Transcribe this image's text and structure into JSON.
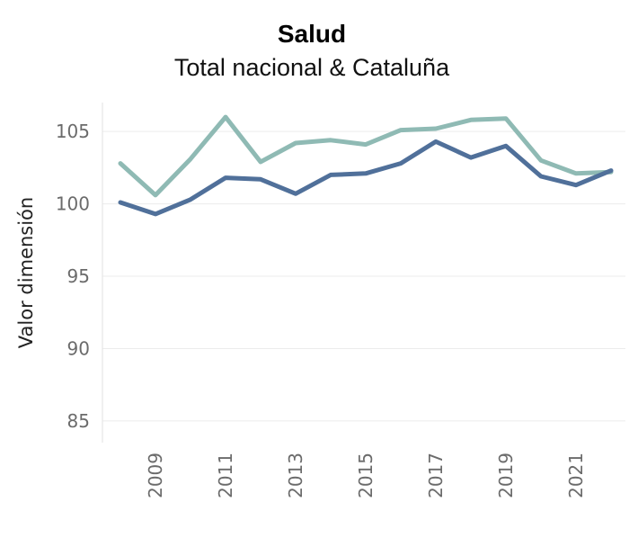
{
  "chart_data": {
    "type": "line",
    "title": "Salud",
    "subtitle": "Total nacional & Cataluña",
    "xlabel": "",
    "ylabel": "Valor dimensión",
    "x": [
      2008,
      2009,
      2010,
      2011,
      2012,
      2013,
      2014,
      2015,
      2016,
      2017,
      2018,
      2019,
      2020,
      2021,
      2022
    ],
    "ylim": [
      83.5,
      107
    ],
    "yticks": [
      85,
      90,
      95,
      100,
      105
    ],
    "xticks": [
      "2009",
      "2011",
      "2013",
      "2015",
      "2017",
      "2019",
      "2021"
    ],
    "series": [
      {
        "name": "Cataluña",
        "color": "#8fbab4",
        "values": [
          102.8,
          100.6,
          103.1,
          106.0,
          102.9,
          104.2,
          104.4,
          104.1,
          105.1,
          105.2,
          105.8,
          105.9,
          103.0,
          102.1,
          102.2
        ]
      },
      {
        "name": "Total nacional",
        "color": "#50709a",
        "values": [
          100.1,
          99.3,
          100.3,
          101.8,
          101.7,
          100.7,
          102.0,
          102.1,
          102.8,
          104.3,
          103.2,
          104.0,
          101.9,
          101.3,
          102.3
        ]
      }
    ]
  }
}
